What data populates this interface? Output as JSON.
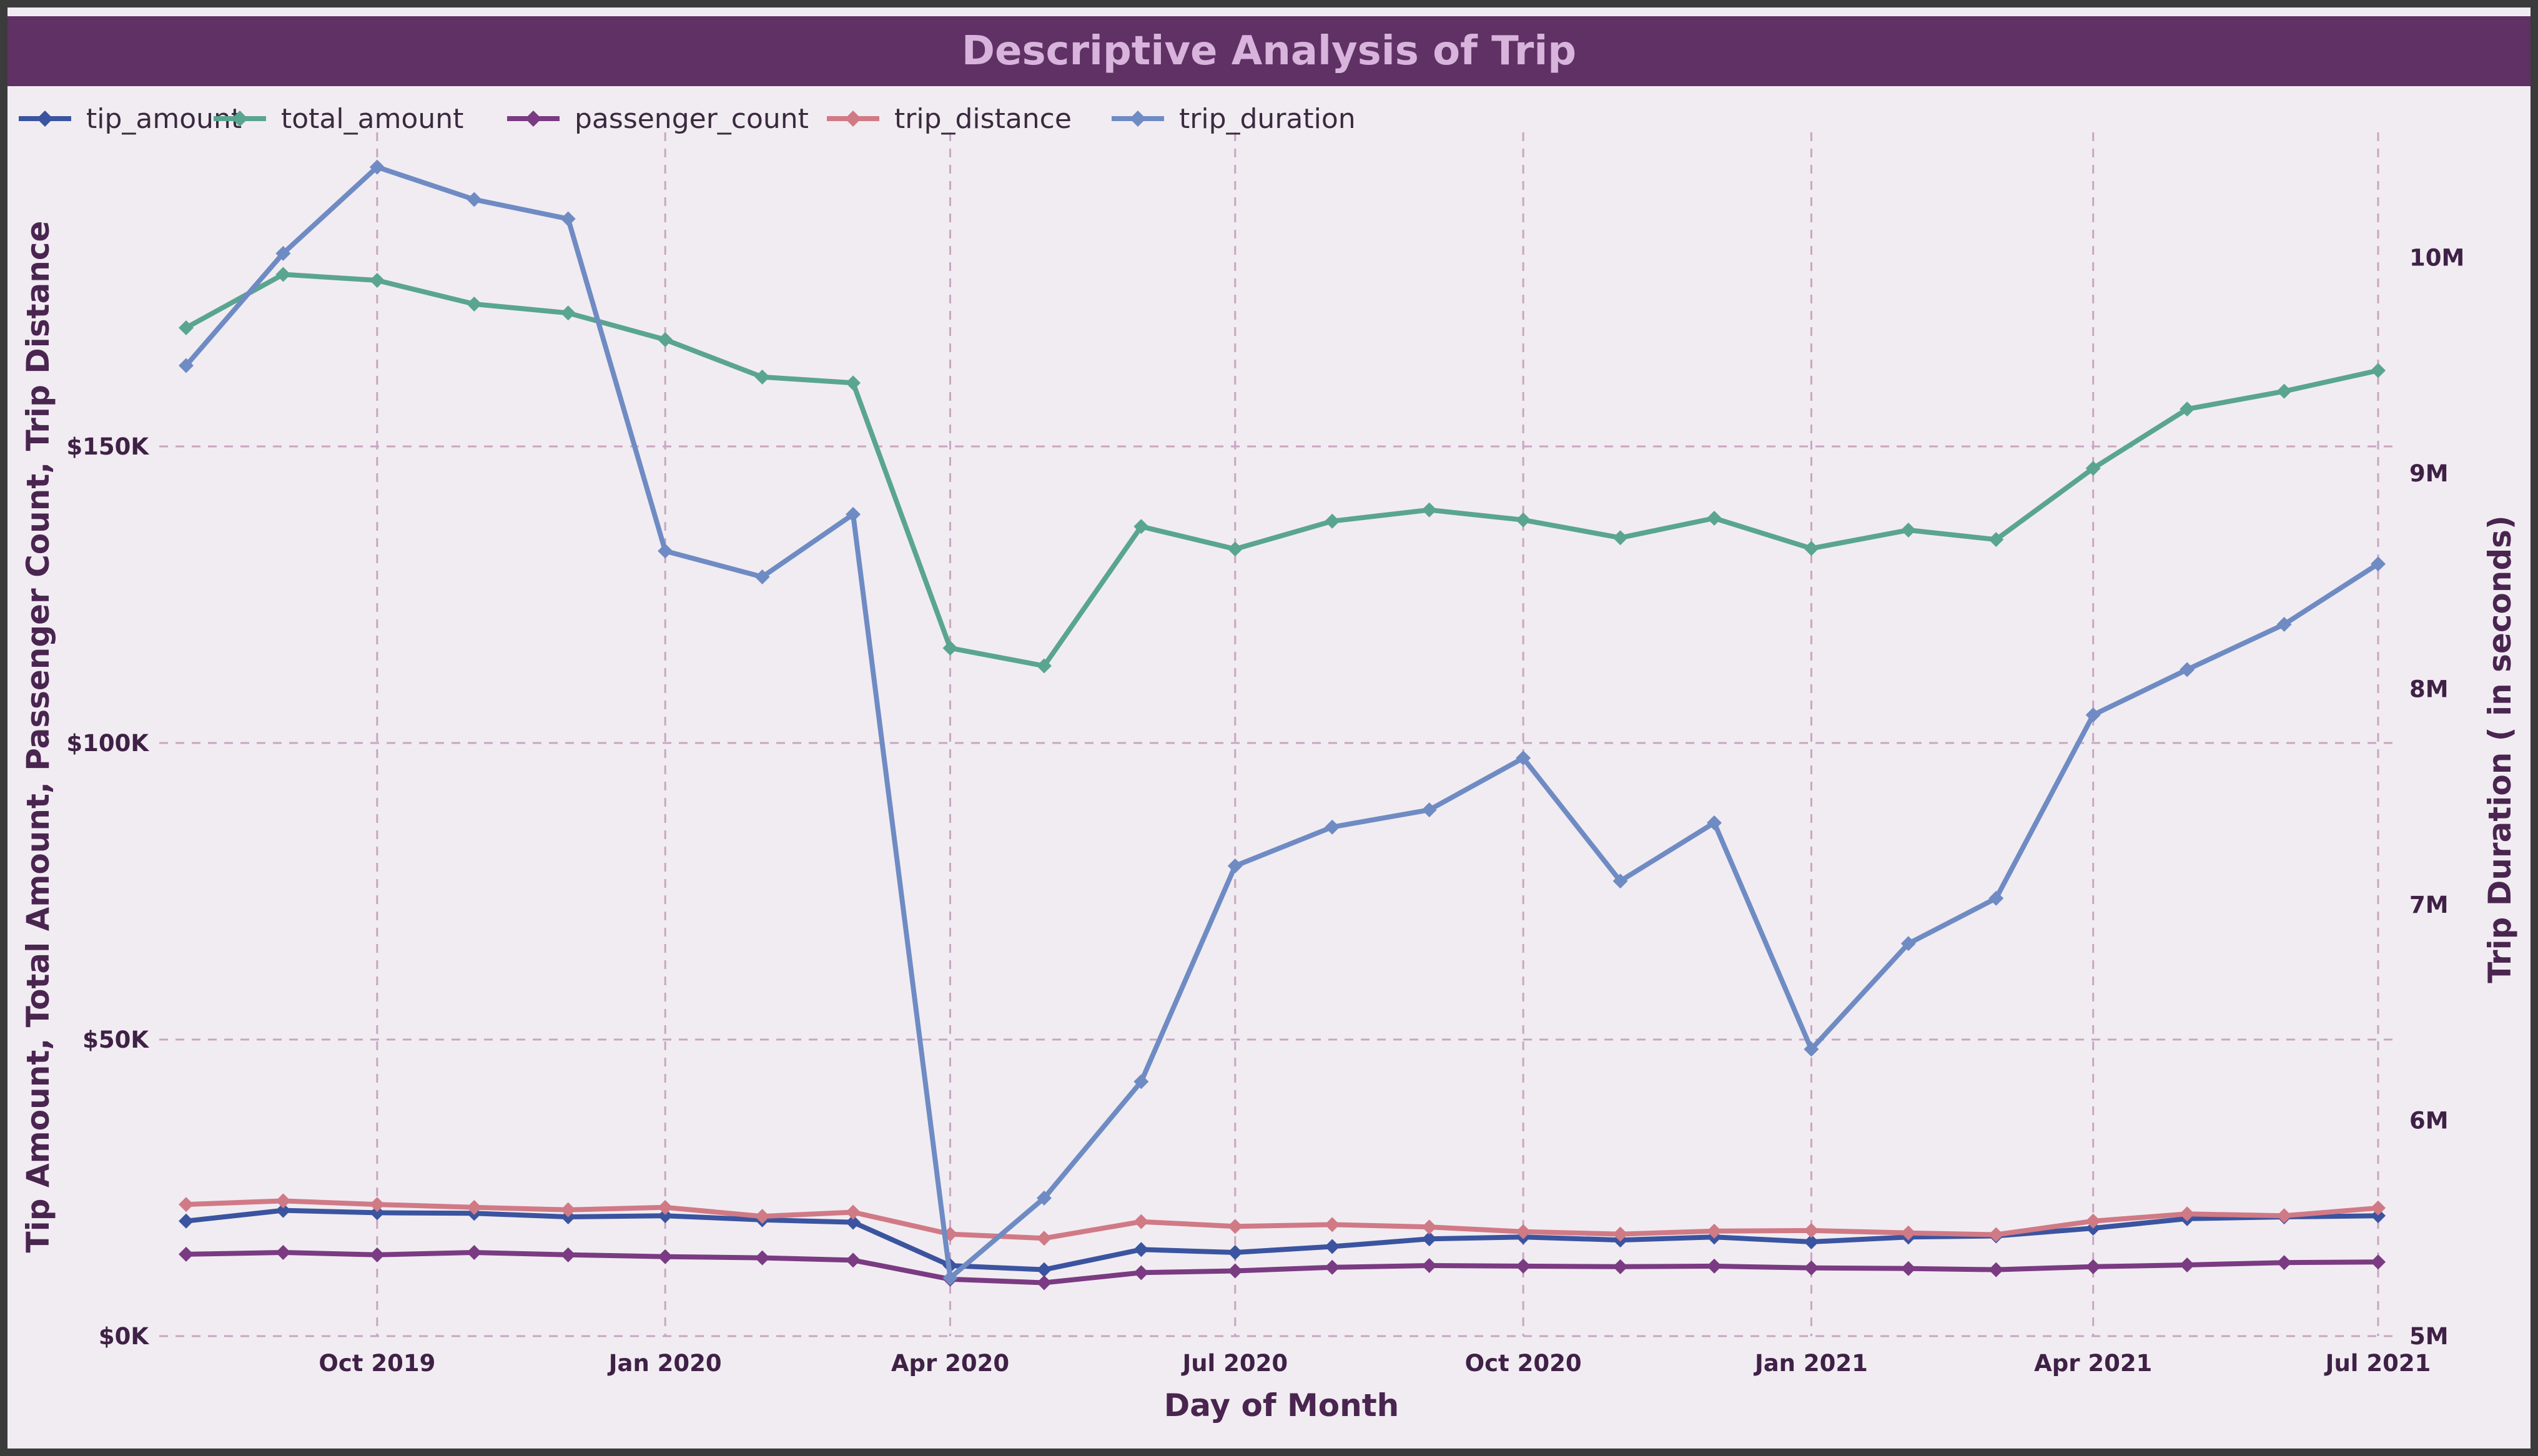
{
  "chart_data": {
    "type": "line",
    "title": "Descriptive Analysis of Trip",
    "xlabel": "Day of Month",
    "ylabel": "Tip Amount, Total Amount, Passenger Count, Trip Distance",
    "y2label": "Trip Duration ( in seconds)",
    "x_ticks": [
      "Oct 2019",
      "Jan 2020",
      "Apr 2020",
      "Jul 2020",
      "Oct 2020",
      "Jan 2021",
      "Apr 2021",
      "Jul 2021"
    ],
    "y_ticks": [
      "$0K",
      "$50K",
      "$100K",
      "$150K"
    ],
    "y2_ticks": [
      "5M",
      "6M",
      "7M",
      "8M",
      "9M",
      "10M"
    ],
    "ylim": [
      0,
      200000
    ],
    "y2lim": [
      5000000,
      10500000
    ],
    "grid": true,
    "legend_position": "top-left",
    "x": [
      "2019-08-01",
      "2019-09-01",
      "2019-10-01",
      "2019-11-01",
      "2019-12-01",
      "2020-01-01",
      "2020-02-01",
      "2020-03-01",
      "2020-04-01",
      "2020-05-01",
      "2020-06-01",
      "2020-07-01",
      "2020-08-01",
      "2020-09-01",
      "2020-10-01",
      "2020-11-01",
      "2020-12-01",
      "2021-01-01",
      "2021-02-01",
      "2021-03-01",
      "2021-04-01",
      "2021-05-01",
      "2021-06-01",
      "2021-07-01"
    ],
    "series": [
      {
        "name": "tip_amount",
        "axis": "left",
        "color": "#3b54a0",
        "values": [
          19400,
          21200,
          20800,
          20700,
          20100,
          20300,
          19600,
          19200,
          11900,
          11200,
          14600,
          14100,
          15100,
          16400,
          16700,
          16200,
          16700,
          15900,
          16700,
          16900,
          18200,
          19800,
          20100,
          20300
        ]
      },
      {
        "name": "total_amount",
        "axis": "left",
        "color": "#5aa58f",
        "values": [
          170000,
          179000,
          178000,
          174000,
          172500,
          168000,
          161700,
          160700,
          116000,
          113000,
          136500,
          132700,
          137400,
          139300,
          137600,
          134600,
          137900,
          132800,
          135900,
          134300,
          146300,
          156300,
          159300,
          162800
        ]
      },
      {
        "name": "passenger_count",
        "axis": "left",
        "color": "#7a3b82",
        "values": [
          13800,
          14100,
          13700,
          14100,
          13700,
          13400,
          13200,
          12800,
          9600,
          9000,
          10700,
          11000,
          11600,
          11900,
          11800,
          11700,
          11800,
          11500,
          11400,
          11200,
          11700,
          12000,
          12400,
          12500
        ]
      },
      {
        "name": "trip_distance",
        "axis": "left",
        "color": "#d07a86",
        "values": [
          22200,
          22800,
          22200,
          21700,
          21300,
          21700,
          20200,
          20900,
          17200,
          16500,
          19300,
          18500,
          18800,
          18400,
          17600,
          17200,
          17700,
          17800,
          17400,
          17100,
          19400,
          20600,
          20300,
          21600
        ]
      },
      {
        "name": "trip_duration",
        "axis": "right",
        "color": "#6f8bc3",
        "values": [
          9500000,
          10020000,
          10420000,
          10270000,
          10180000,
          8640000,
          8520000,
          8810000,
          5270000,
          5640000,
          6180000,
          7180000,
          7360000,
          7440000,
          7680000,
          7110000,
          7380000,
          6330000,
          6820000,
          7030000,
          7880000,
          8090000,
          8300000,
          8580000
        ]
      }
    ]
  }
}
